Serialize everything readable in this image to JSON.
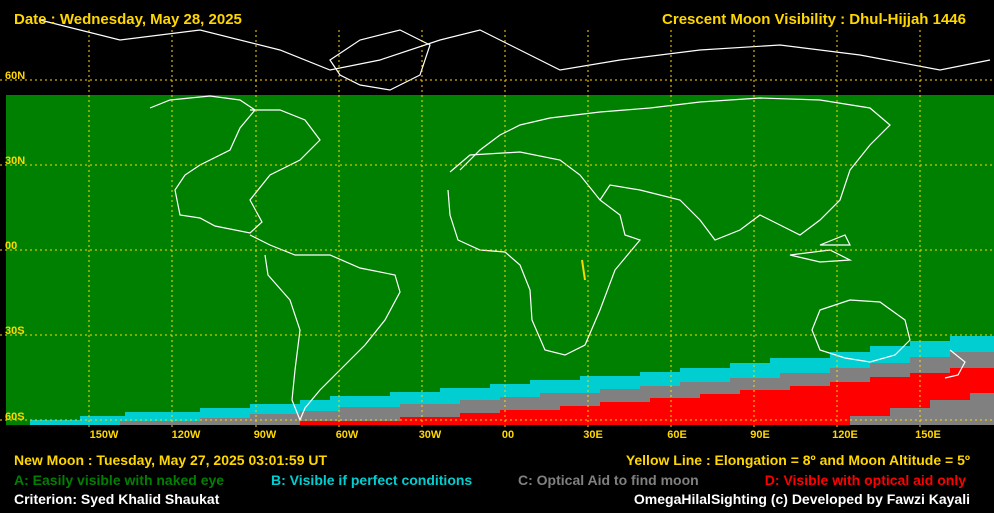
{
  "header": {
    "date": "Date : Wednesday, May 28, 2025",
    "title": "Crescent Moon Visibility : Dhul-Hijjah  1446"
  },
  "lat_labels": [
    "60N",
    "30N",
    "00",
    "30S",
    "60S"
  ],
  "lon_labels": [
    "150W",
    "120W",
    "90W",
    "60W",
    "30W",
    "00",
    "30E",
    "60E",
    "90E",
    "120E",
    "150E"
  ],
  "footer": {
    "new_moon": "New Moon : Tuesday, May 27, 2025  03:01:59  UT",
    "yellow_line": "Yellow Line : Elongation = 8º  and Moon Altitude = 5º",
    "legend_a": "A: Easily visible with naked eye",
    "legend_b": "B: Visible if perfect conditions",
    "legend_c": "C: Optical Aid to find moon",
    "legend_d": "D: Visible with optical aid only",
    "criterion": "Criterion: Syed Khalid Shaukat",
    "credit": "OmegaHilalSighting  (c)  Developed by Fawzi Kayali"
  },
  "colors": {
    "zone_a": "#008000",
    "zone_b": "#00CED1",
    "zone_c": "#808080",
    "zone_d": "#FF0000",
    "grid": "#FFD700",
    "coast": "#FFFFFF",
    "label": "#FFD700"
  }
}
